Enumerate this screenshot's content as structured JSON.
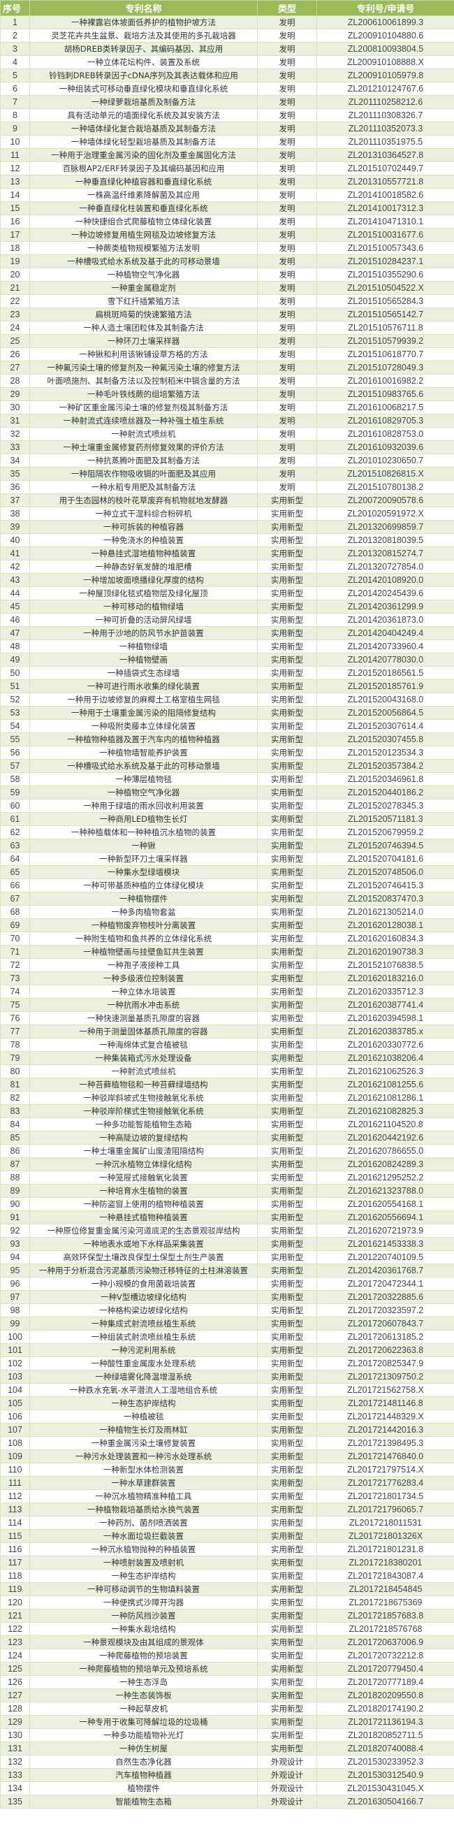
{
  "header": {
    "no": "序号",
    "name": "专利名称",
    "type": "类型",
    "id": "专利号/申请号"
  },
  "colors": {
    "header": "#9bbb59",
    "odd_row": "#ebf1de",
    "even_row": "#ffffff"
  },
  "rows": [
    {
      "no": "1",
      "name": "一种裸露岩体坡面低养护的植物护坡方法",
      "type": "发明",
      "id": "ZL200610061899.3"
    },
    {
      "no": "2",
      "name": "灵芝花卉共生盆景、栽培方法及其使用的多孔栽培器",
      "type": "发明",
      "id": "ZL200910104880.6"
    },
    {
      "no": "3",
      "name": "胡杨DREB类转录因子、其编码基因、其应用",
      "type": "发明",
      "id": "ZL200810093804.5"
    },
    {
      "no": "4",
      "name": "一种立体花坛构件、装置及系统",
      "type": "发明",
      "id": "ZL200910108888.X"
    },
    {
      "no": "5",
      "name": "铃铛刺DREB转录因子cDNA序列及其表达载体和应用",
      "type": "发明",
      "id": "ZL200910105979.8"
    },
    {
      "no": "6",
      "name": "一种组装式可移动垂直绿化模块和垂直绿化系统",
      "type": "发明",
      "id": "ZL201210124767.6"
    },
    {
      "no": "7",
      "name": "一种绿萝栽培基质及制备方法",
      "type": "发明",
      "id": "ZL201110258212.6"
    },
    {
      "no": "8",
      "name": "具有活动单元的墙面绿化系统及其安装方法",
      "type": "发明",
      "id": "ZL201110308326.7"
    },
    {
      "no": "9",
      "name": "一种墙体绿化复合栽培基质及其制备方法",
      "type": "发明",
      "id": "ZL201110352073.3"
    },
    {
      "no": "10",
      "name": "一种墙体绿化轻型栽培基质及其制备方法",
      "type": "发明",
      "id": "ZL201110351975.5"
    },
    {
      "no": "11",
      "name": "一种用于治理重金属污染的固化剂及重金属固化方法",
      "type": "发明",
      "id": "ZL201310364527.8"
    },
    {
      "no": "12",
      "name": "百脉根AP2/ERF转录因子及其编码基因和应用",
      "type": "发明",
      "id": "ZL201510702449.7"
    },
    {
      "no": "13",
      "name": "一种垂直绿化种植容器和垂直绿化系统",
      "type": "发明",
      "id": "ZL201310557721.8"
    },
    {
      "no": "14",
      "name": "一株高温纤维素降解菌及其应用",
      "type": "发明",
      "id": "ZL201410018582.6"
    },
    {
      "no": "15",
      "name": "一种垂直绿化柱装置和垂直绿化系统",
      "type": "发明",
      "id": "ZL201410017312.3"
    },
    {
      "no": "16",
      "name": "一种快捷组合式爬藤植物立体绿化装置",
      "type": "发明",
      "id": "ZL201410471310.1"
    },
    {
      "no": "17",
      "name": "一种边坡修复用植生网毯及边坡修复方法",
      "type": "发明",
      "id": "ZL201510031677.6"
    },
    {
      "no": "18",
      "name": "一种蕨类植物规模繁殖方法发明",
      "type": "发明",
      "id": "ZL201510057343.6"
    },
    {
      "no": "19",
      "name": "一种槽吸式给水系统及基于此的可移动景墙",
      "type": "发明",
      "id": "ZL201510284237.1"
    },
    {
      "no": "20",
      "name": "一种植物空气净化器",
      "type": "发明",
      "id": "ZL201510355290.6"
    },
    {
      "no": "21",
      "name": "一种重金属稳定剂",
      "type": "发明",
      "id": "ZL201510504522.X"
    },
    {
      "no": "22",
      "name": "雪下红扦插繁殖方法",
      "type": "发明",
      "id": "ZL201510565284.3"
    },
    {
      "no": "23",
      "name": "扁桃斑鸠菊的快速繁殖方法",
      "type": "发明",
      "id": "ZL201510565142.7"
    },
    {
      "no": "24",
      "name": "一种人造土壤团粒体及其制备方法",
      "type": "发明",
      "id": "ZL201510576711.8"
    },
    {
      "no": "25",
      "name": "一种环刀土壤采样器",
      "type": "发明",
      "id": "ZL201510579939.2"
    },
    {
      "no": "26",
      "name": "一种锹和利用该锹铺设草方格的方法",
      "type": "发明",
      "id": "ZL201510618770.7"
    },
    {
      "no": "27",
      "name": "一种氟污染土壤的修复剂及一种氟污染土壤的修复方法",
      "type": "发明",
      "id": "ZL201510728049.3"
    },
    {
      "no": "28",
      "name": "叶面喷施剂、其制备方法以及控制稻米中镉含量的方法",
      "type": "发明",
      "id": "ZL201610016982.2"
    },
    {
      "no": "29",
      "name": "一种毛叶铁线蕨的组培繁殖方法",
      "type": "发明",
      "id": "ZL201510983765.6"
    },
    {
      "no": "30",
      "name": "一种矿区重金属污染土壤的修复剂极其制备方法",
      "type": "发明",
      "id": "ZL201610068217.5"
    },
    {
      "no": "31",
      "name": "一种射流式连续喷丝器及一种补强土植生系统",
      "type": "发明",
      "id": "ZL201610829705.3"
    },
    {
      "no": "32",
      "name": "一种射流式喷丝机",
      "type": "发明",
      "id": "ZL201610828753.0"
    },
    {
      "no": "33",
      "name": "一种土壤重金属修复药剂修复效果的评价方法",
      "type": "发明",
      "id": "ZL201610932039.6"
    },
    {
      "no": "34",
      "name": "一种抗蒸腾叶面肥及其制备方法",
      "type": "发明",
      "id": "ZL201010230650.7"
    },
    {
      "no": "35",
      "name": "一种阻隔农作物吸收镉的叶面肥及其应用",
      "type": "发明",
      "id": "ZL201510826815.X"
    },
    {
      "no": "36",
      "name": "一种水稻专用肥及其制备方法",
      "type": "发明",
      "id": "ZL201510780138.2"
    },
    {
      "no": "37",
      "name": "用于生态园林的枝叶花草废弃有机物就地发酵器",
      "type": "实用新型",
      "id": "ZL200720090578.6"
    },
    {
      "no": "38",
      "name": "一种立式干湿料综合粉碎机",
      "type": "实用新型",
      "id": "ZL201020591972.X"
    },
    {
      "no": "39",
      "name": "一种可拆装的种植容器",
      "type": "实用新型",
      "id": "ZL201320699859.7"
    },
    {
      "no": "40",
      "name": "一种免浇水的种植装置",
      "type": "实用新型",
      "id": "ZL201320818039.5"
    },
    {
      "no": "41",
      "name": "一种悬挂式湿地植物种植装置",
      "type": "实用新型",
      "id": "ZL201320815274.7"
    },
    {
      "no": "42",
      "name": "一种静态好氧发酵的堆肥槽",
      "type": "实用新型",
      "id": "ZL201320727854.0"
    },
    {
      "no": "43",
      "name": "一种增加坡面喷播绿化厚度的结构",
      "type": "实用新型",
      "id": "ZL201420108920.0"
    },
    {
      "no": "44",
      "name": "一种屋顶绿化毯式植物层及绿化屋顶",
      "type": "实用新型",
      "id": "ZL201420245439.6"
    },
    {
      "no": "45",
      "name": "一种可移动的植物绿墙",
      "type": "实用新型",
      "id": "ZL201420361299.9"
    },
    {
      "no": "46",
      "name": "一种可折叠的活动屏风绿墙",
      "type": "实用新型",
      "id": "ZL201420361873.0"
    },
    {
      "no": "47",
      "name": "一种用于沙地的防风节水护苗装置",
      "type": "实用新型",
      "id": "ZL201420404249.4"
    },
    {
      "no": "48",
      "name": "一种植物绿墙",
      "type": "实用新型",
      "id": "ZL201420733960.4"
    },
    {
      "no": "49",
      "name": "一种植物壁画",
      "type": "实用新型",
      "id": "ZL201420778030.0"
    },
    {
      "no": "50",
      "name": "一种插袋式生态绿墙",
      "type": "实用新型",
      "id": "ZL201520186561.5"
    },
    {
      "no": "51",
      "name": "一种可进行雨水收集的绿化装置",
      "type": "实用新型",
      "id": "ZL201520185761.9"
    },
    {
      "no": "52",
      "name": "一种用于边坡修复的麻椰土工格室植生网毯",
      "type": "实用新型",
      "id": "ZL201520043168.0"
    },
    {
      "no": "53",
      "name": "一种用于土壤重金属污染的阻隔修复结构",
      "type": "实用新型",
      "id": "ZL201520056864.5"
    },
    {
      "no": "54",
      "name": "一种吸附类藤本立体绿化装置",
      "type": "实用新型",
      "id": "ZL201520307614.4"
    },
    {
      "no": "55",
      "name": "一种植物种植器及置于汽车内的植物种植器",
      "type": "实用新型",
      "id": "ZL201520307455.8"
    },
    {
      "no": "56",
      "name": "一种植物墙智能养护装置",
      "type": "实用新型",
      "id": "ZL201520123534.3"
    },
    {
      "no": "57",
      "name": "一种槽吸式给水系统及基于此的可移动景墙",
      "type": "实用新型",
      "id": "ZL201520357384.2"
    },
    {
      "no": "58",
      "name": "一种薄层植物毯",
      "type": "实用新型",
      "id": "ZL201520346961.8"
    },
    {
      "no": "59",
      "name": "一种植物空气净化器",
      "type": "实用新型",
      "id": "ZL201520440186.2"
    },
    {
      "no": "60",
      "name": "一种用于绿墙的雨水回收利用装置",
      "type": "实用新型",
      "id": "ZL201520278345.3"
    },
    {
      "no": "61",
      "name": "一种商用LED植物生长灯",
      "type": "实用新型",
      "id": "ZL201520571181.3"
    },
    {
      "no": "62",
      "name": "一种种植载体和一种种植沉水植物的装置",
      "type": "实用新型",
      "id": "ZL201520679959.2"
    },
    {
      "no": "63",
      "name": "一种锹",
      "type": "实用新型",
      "id": "ZL201520746394.5"
    },
    {
      "no": "64",
      "name": "一种新型环刀土壤采样器",
      "type": "实用新型",
      "id": "ZL201520704181.6"
    },
    {
      "no": "65",
      "name": "一种集水型绿墙模块",
      "type": "实用新型",
      "id": "ZL201520748506.0"
    },
    {
      "no": "66",
      "name": "一种可带基质种植的立体绿化模块",
      "type": "实用新型",
      "id": "ZL201520746415.3"
    },
    {
      "no": "67",
      "name": "一种植物摆件",
      "type": "实用新型",
      "id": "ZL201520837470.3"
    },
    {
      "no": "68",
      "name": "一种多肉植物套盆",
      "type": "实用新型",
      "id": "ZL201621305214.0"
    },
    {
      "no": "69",
      "name": "一种植物废弃物枝叶分离装置",
      "type": "实用新型",
      "id": "ZL201620128038.1"
    },
    {
      "no": "70",
      "name": "一种附生植物和鱼共养的立体绿化系统",
      "type": "实用新型",
      "id": "ZL201620160834.3"
    },
    {
      "no": "71",
      "name": "一种植物壁画与挂壁鱼缸共生装置",
      "type": "实用新型",
      "id": "ZL201620190738.3"
    },
    {
      "no": "72",
      "name": "一种孢子液接种工具",
      "type": "实用新型",
      "id": "ZL201521076838.5"
    },
    {
      "no": "73",
      "name": "一种多级液位控制装置",
      "type": "实用新型",
      "id": "ZL201620183216.0"
    },
    {
      "no": "74",
      "name": "一种立体水培装置",
      "type": "实用新型",
      "id": "ZL201620335712.3"
    },
    {
      "no": "75",
      "name": "一种抗雨水冲击系统",
      "type": "实用新型",
      "id": "ZL201620387741.4"
    },
    {
      "no": "76",
      "name": "一种快速测量基质孔隙度的容器",
      "type": "实用新型",
      "id": "ZL201620394598.1"
    },
    {
      "no": "77",
      "name": "一种用于测量固体基质孔隙度的容器",
      "type": "实用新型",
      "id": "ZL201620383785.x"
    },
    {
      "no": "78",
      "name": "一种海绵体式复合植被毯",
      "type": "实用新型",
      "id": "ZL201620330772.6"
    },
    {
      "no": "79",
      "name": "一种集装箱式污水处理设备",
      "type": "实用新型",
      "id": "ZL201621038206.4"
    },
    {
      "no": "80",
      "name": "一种射流式喷丝机",
      "type": "实用新型",
      "id": "ZL201621062526.3"
    },
    {
      "no": "81",
      "name": "一种苔藓植物毯和一种苔藓绿墙结构",
      "type": "实用新型",
      "id": "ZL201621081255.6"
    },
    {
      "no": "82",
      "name": "一种驳岸斜坡式生物接触氧化系统",
      "type": "实用新型",
      "id": "ZL201621081286.1"
    },
    {
      "no": "83",
      "name": "一种驳岸阶梯式生物接触氧化系统",
      "type": "实用新型",
      "id": "ZL201621082825.3"
    },
    {
      "no": "84",
      "name": "一种多功能智能植物生态箱",
      "type": "实用新型",
      "id": "ZL201621104520.8"
    },
    {
      "no": "85",
      "name": "一种高陡边坡的复绿结构",
      "type": "实用新型",
      "id": "ZL201620442192.6"
    },
    {
      "no": "86",
      "name": "一种土壤重金属矿山废渣阻隔结构",
      "type": "实用新型",
      "id": "ZL201620786655.0"
    },
    {
      "no": "87",
      "name": "一种沉水植物立体绿化结构",
      "type": "实用新型",
      "id": "ZL201620824289.3"
    },
    {
      "no": "88",
      "name": "一种笼屉式接触氧化装置",
      "type": "实用新型",
      "id": "ZL201621295252.2"
    },
    {
      "no": "89",
      "name": "一种培育水生植物的装置",
      "type": "实用新型",
      "id": "ZL201621323788.0"
    },
    {
      "no": "90",
      "name": "一种防盗窗上使用的植物种植装置",
      "type": "实用新型",
      "id": "ZL201620554168.1"
    },
    {
      "no": "91",
      "name": "一种悬挂式植物种植装置",
      "type": "实用新型",
      "id": "ZL201620556694.1"
    },
    {
      "no": "92",
      "name": "一种原位修复重金属污染河道底泥的生态景观驳岸结构",
      "type": "实用新型",
      "id": "ZL201620721973.9"
    },
    {
      "no": "93",
      "name": "一种地表水或地下水样品采集装置",
      "type": "实用新型",
      "id": "ZL201621453338.3"
    },
    {
      "no": "94",
      "name": "高效环保型土壤改良保型土保型土剂生产装置",
      "type": "实用新型",
      "id": "ZL201220740109.5"
    },
    {
      "no": "95",
      "name": "一种用于分析混合污泥基质污染物迁移特征的土柱淋溶装置",
      "type": "实用新型",
      "id": "ZL201420361768.7"
    },
    {
      "no": "96",
      "name": "一种小规模的食用菌栽培装置",
      "type": "实用新型",
      "id": "ZL201720472344.1"
    },
    {
      "no": "97",
      "name": "一种V型槽边坡绿化结构",
      "type": "实用新型",
      "id": "ZL201720322885.6"
    },
    {
      "no": "98",
      "name": "一种格构梁边坡绿化结构",
      "type": "实用新型",
      "id": "ZL201720323597.2"
    },
    {
      "no": "99",
      "name": "一种集成式射流喷丝植生系统",
      "type": "实用新型",
      "id": "ZL201720607843.7"
    },
    {
      "no": "100",
      "name": "一种组装式射流喷丝植生系统",
      "type": "实用新型",
      "id": "ZL201720613185.2"
    },
    {
      "no": "101",
      "name": "一种污泥利用系统",
      "type": "实用新型",
      "id": "ZL201720622363.8"
    },
    {
      "no": "102",
      "name": "一种酸性重金属废水处理系统",
      "type": "实用新型",
      "id": "ZL201720825347.9"
    },
    {
      "no": "103",
      "name": "一种绿墙雾化降温增湿系统",
      "type": "实用新型",
      "id": "ZL201721309750.2"
    },
    {
      "no": "104",
      "name": "一种跌水充氧-水平潜流人工湿地组合系统",
      "type": "实用新型",
      "id": "ZL201721562758.X"
    },
    {
      "no": "105",
      "name": "一种生态护岸结构",
      "type": "实用新型",
      "id": "ZL201721481146.8"
    },
    {
      "no": "106",
      "name": "一种植被毯",
      "type": "实用新型",
      "id": "ZL201721448329.X"
    },
    {
      "no": "107",
      "name": "一种植物生长灯及雨林缸",
      "type": "实用新型",
      "id": "ZL201721442016.3"
    },
    {
      "no": "108",
      "name": "一种重金属污染土壤修复装置",
      "type": "实用新型",
      "id": "ZL201721398495.3"
    },
    {
      "no": "109",
      "name": "一种污水处理装置和一种污水处理系统",
      "type": "实用新型",
      "id": "ZL201721476840.0"
    },
    {
      "no": "110",
      "name": "一种新型水体检测装置",
      "type": "实用新型",
      "id": "ZL201721797514.X"
    },
    {
      "no": "111",
      "name": "一种水草建群装置",
      "type": "实用新型",
      "id": "ZL201721776283.4"
    },
    {
      "no": "112",
      "name": "一种沉水植物精准种植工具",
      "type": "实用新型",
      "id": "ZL201721801734.5"
    },
    {
      "no": "113",
      "name": "一种植物栽培基质给水换气装置",
      "type": "实用新型",
      "id": "ZL201721796065.7"
    },
    {
      "no": "114",
      "name": "一种药剂、菌剂喷洒装置",
      "type": "实用新型",
      "id": "ZL2017218011531"
    },
    {
      "no": "115",
      "name": "一种水面垃圾拦截装置",
      "type": "实用新型",
      "id": "ZL201721801326X"
    },
    {
      "no": "116",
      "name": "一种沉水植物抛种的种植装置",
      "type": "实用新型",
      "id": "ZL201721801231.8"
    },
    {
      "no": "117",
      "name": "一种喷射装置及喷射机",
      "type": "实用新型",
      "id": "ZL2017218380201"
    },
    {
      "no": "118",
      "name": "一种生态护岸结构",
      "type": "实用新型",
      "id": "ZL201721843087.4"
    },
    {
      "no": "119",
      "name": "一种可移动调节的生物填料装置",
      "type": "实用新型",
      "id": "ZL2017218454845"
    },
    {
      "no": "120",
      "name": "一种便携式沙障开沟器",
      "type": "实用新型",
      "id": "ZL2017218675369"
    },
    {
      "no": "121",
      "name": "一种防风挡沙装置",
      "type": "实用新型",
      "id": "ZL201721857683.8"
    },
    {
      "no": "122",
      "name": "一种集水栽培结构",
      "type": "实用新型",
      "id": "ZL2017218576768"
    },
    {
      "no": "123",
      "name": "一种景观模块及由其组成的景观体",
      "type": "实用新型",
      "id": "ZL201720637006.9"
    },
    {
      "no": "124",
      "name": "一种爬藤植物的预培装置",
      "type": "实用新型",
      "id": "ZL201720732212.8"
    },
    {
      "no": "125",
      "name": "一种爬藤植物的预培单元及预培系统",
      "type": "实用新型",
      "id": "ZL201720779450.4"
    },
    {
      "no": "126",
      "name": "一种生态浮岛",
      "type": "实用新型",
      "id": "ZL201720777189.4"
    },
    {
      "no": "127",
      "name": "一种生态装饰板",
      "type": "实用新型",
      "id": "ZL201820209550.8"
    },
    {
      "no": "128",
      "name": "一种起草皮机",
      "type": "实用新型",
      "id": "ZL201820174190.2"
    },
    {
      "no": "129",
      "name": "一种专用于收集可降解垃圾的垃圾桶",
      "type": "实用新型",
      "id": "ZL201721136194.3"
    },
    {
      "no": "130",
      "name": "一种多功能植物补光灯",
      "type": "实用新型",
      "id": "ZL201820852711.5"
    },
    {
      "no": "131",
      "name": "一种仿生树屋",
      "type": "实用新型",
      "id": "ZL201820740088.4"
    },
    {
      "no": "132",
      "name": "自然生态净化器",
      "type": "外观设计",
      "id": "ZL201530233952.3"
    },
    {
      "no": "133",
      "name": "汽车植物种植器",
      "type": "外观设计",
      "id": "ZL201530312540.9"
    },
    {
      "no": "134",
      "name": "植物摆件",
      "type": "外观设计",
      "id": "ZL201530431045.X"
    },
    {
      "no": "135",
      "name": "智能植物生态箱",
      "type": "外观设计",
      "id": "ZL201630504166.7"
    }
  ]
}
